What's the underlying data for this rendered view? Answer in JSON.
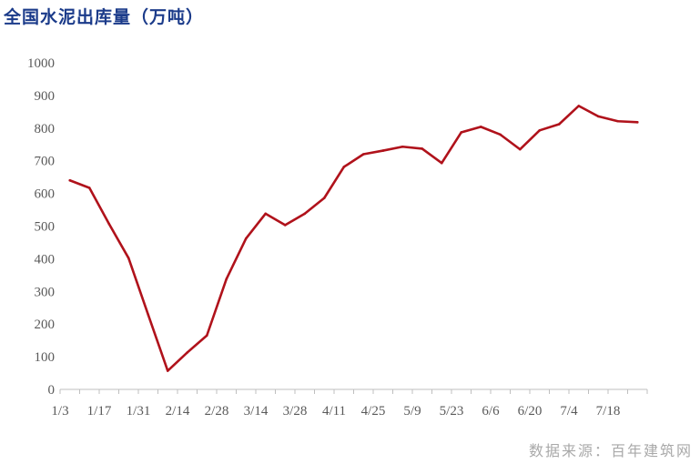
{
  "header": {
    "title": "全国水泥出库量（万吨）"
  },
  "footer": {
    "source": "数据来源：百年建筑网"
  },
  "colors": {
    "line": "#b0121b",
    "title": "#1b3b8a",
    "axis": "#bfbfbf",
    "text": "#595959"
  },
  "chart_data": {
    "type": "line",
    "title": "全国水泥出库量（万吨）",
    "xlabel": "",
    "ylabel": "",
    "ylim": [
      0,
      1000
    ],
    "yticks": [
      0,
      100,
      200,
      300,
      400,
      500,
      600,
      700,
      800,
      900,
      1000
    ],
    "x_tick_labels": [
      "1/3",
      "1/17",
      "1/31",
      "2/14",
      "2/28",
      "3/14",
      "3/28",
      "4/11",
      "4/25",
      "5/9",
      "5/23",
      "6/6",
      "6/20",
      "7/4",
      "7/18"
    ],
    "grid": false,
    "legend": "none",
    "series": [
      {
        "name": "",
        "color": "#b0121b",
        "x": [
          "1/3",
          "1/10",
          "1/17",
          "1/24",
          "1/31",
          "2/7",
          "2/14",
          "2/21",
          "2/28",
          "3/7",
          "3/14",
          "3/21",
          "3/28",
          "4/4",
          "4/11",
          "4/18",
          "4/25",
          "5/2",
          "5/9",
          "5/16",
          "5/23",
          "5/30",
          "6/6",
          "6/13",
          "6/20",
          "6/27",
          "7/4",
          "7/11",
          "7/18",
          "7/25"
        ],
        "values": [
          640,
          617,
          507,
          402,
          229,
          57,
          113,
          165,
          338,
          462,
          538,
          503,
          538,
          586,
          681,
          720,
          731,
          743,
          737,
          693,
          787,
          804,
          780,
          735,
          793,
          812,
          868,
          836,
          821,
          818
        ]
      }
    ]
  }
}
